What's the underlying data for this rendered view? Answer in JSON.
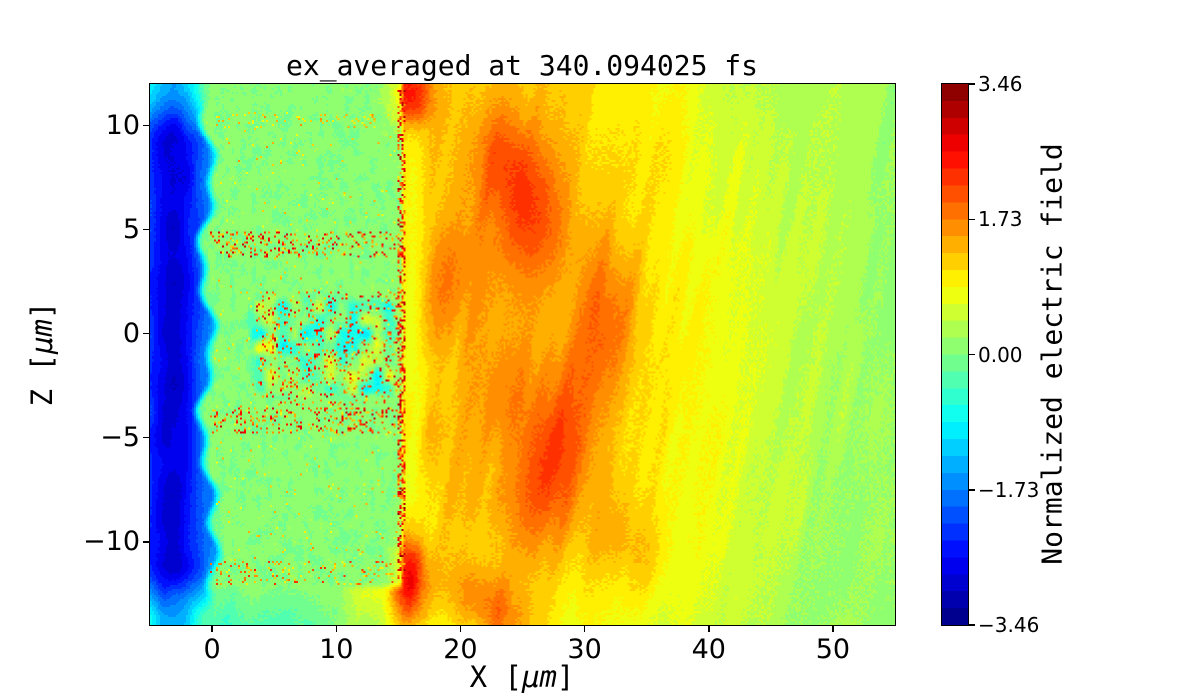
{
  "chart_data": {
    "type": "heatmap",
    "title": "ex_averaged at 340.094025 fs",
    "xlabel_parts": {
      "pre": "X [",
      "unit": "μm",
      "post": "]"
    },
    "ylabel_parts": {
      "pre": "Z [",
      "unit": "μm",
      "post": "]"
    },
    "colorbar_label": "Normalized electric field",
    "x_range": [
      -5,
      55
    ],
    "z_range": [
      -14,
      12
    ],
    "value_range": [
      -3.46,
      3.46
    ],
    "x_ticks": [
      0,
      10,
      20,
      30,
      40,
      50
    ],
    "x_tick_labels": [
      "0",
      "10",
      "20",
      "30",
      "40",
      "50"
    ],
    "z_ticks": [
      10,
      5,
      0,
      -5,
      -10
    ],
    "z_tick_labels": [
      "10",
      "5",
      "0",
      "−5",
      "−10"
    ],
    "colorbar_ticks": [
      3.46,
      1.73,
      0.0,
      -1.73,
      -3.46
    ],
    "colorbar_tick_labels": [
      "3.46",
      "1.73",
      "0.00",
      "−1.73",
      "−3.46"
    ],
    "colormap": "jet",
    "colormap_levels": 32,
    "grid": {
      "x": [
        -5,
        0,
        5,
        10,
        15,
        20,
        25,
        30,
        35,
        40,
        45,
        50,
        55
      ],
      "z": [
        12,
        10,
        8,
        6,
        4,
        2,
        0,
        -2,
        -4,
        -6,
        -8,
        -10,
        -12,
        -14
      ],
      "values": [
        [
          -1.1,
          0.15,
          0.15,
          0.2,
          1.5,
          1.25,
          1.35,
          1.15,
          0.9,
          0.65,
          0.45,
          0.3,
          0.2
        ],
        [
          -2.3,
          0.05,
          0.05,
          0.1,
          1.2,
          1.3,
          1.4,
          1.2,
          0.95,
          0.7,
          0.5,
          0.3,
          0.2
        ],
        [
          -2.6,
          0.05,
          0.05,
          0.05,
          1.15,
          1.35,
          1.4,
          1.25,
          1.0,
          0.75,
          0.5,
          0.3,
          0.2
        ],
        [
          -2.7,
          0.05,
          0.05,
          0.05,
          1.15,
          1.4,
          1.4,
          1.25,
          1.0,
          0.75,
          0.5,
          0.35,
          0.2
        ],
        [
          -2.75,
          0.1,
          0.1,
          0.1,
          1.2,
          1.45,
          1.45,
          1.3,
          1.05,
          0.8,
          0.55,
          0.35,
          0.2
        ],
        [
          -2.8,
          0.05,
          0.0,
          -0.1,
          1.2,
          1.4,
          1.4,
          1.3,
          1.1,
          0.8,
          0.55,
          0.35,
          0.2
        ],
        [
          -2.8,
          0.05,
          -0.2,
          -0.4,
          1.15,
          1.3,
          1.35,
          1.3,
          1.1,
          0.8,
          0.55,
          0.35,
          0.2
        ],
        [
          -2.8,
          0.05,
          -0.15,
          -0.25,
          1.05,
          1.25,
          1.4,
          1.35,
          1.1,
          0.8,
          0.55,
          0.35,
          0.2
        ],
        [
          -2.75,
          0.1,
          0.1,
          0.1,
          1.1,
          1.3,
          1.45,
          1.35,
          1.05,
          0.8,
          0.5,
          0.35,
          0.2
        ],
        [
          -2.7,
          0.05,
          0.05,
          0.05,
          1.1,
          1.3,
          1.45,
          1.35,
          1.0,
          0.75,
          0.5,
          0.3,
          0.2
        ],
        [
          -2.65,
          0.05,
          0.05,
          0.05,
          1.1,
          1.3,
          1.45,
          1.3,
          1.0,
          0.7,
          0.5,
          0.3,
          0.2
        ],
        [
          -2.4,
          0.05,
          0.05,
          0.05,
          1.3,
          1.15,
          1.25,
          1.2,
          0.95,
          0.7,
          0.45,
          0.3,
          0.2
        ],
        [
          -1.6,
          -0.1,
          0.05,
          0.15,
          1.3,
          1.15,
          1.05,
          1.0,
          0.8,
          0.6,
          0.4,
          0.25,
          0.15
        ],
        [
          -1.0,
          -0.5,
          -0.35,
          0.0,
          0.7,
          0.95,
          0.9,
          0.85,
          0.7,
          0.5,
          0.35,
          0.25,
          0.15
        ]
      ]
    },
    "features": {
      "vacuum_blue": {
        "center_x": -3.2,
        "depth_amp": 1.55,
        "base": -1.35,
        "edge_lighten": 1.5
      },
      "target_slab": {
        "x_max": 15.15,
        "base_value": 0.05,
        "z_bottom": -12.45,
        "edge_x_base": -0.4,
        "edge_wave_amp": 0.5,
        "edge_bulge_z": -11.3
      },
      "front_line": {
        "x": [
          14.95,
          15.6
        ],
        "z": [
          -11.8,
          11.7
        ],
        "density": 0.42,
        "value": [
          1.2,
          3.3
        ]
      },
      "noise_bands": [
        {
          "x": [
            0.0,
            15.3
          ],
          "z": [
            9.9,
            10.7
          ],
          "density": 0.08,
          "value": [
            0.7,
            1.6
          ]
        },
        {
          "x": [
            -0.2,
            15.5
          ],
          "z": [
            3.7,
            4.9
          ],
          "density": 0.18,
          "value": [
            1.1,
            3.0
          ]
        },
        {
          "x": [
            -0.2,
            15.5
          ],
          "z": [
            -4.8,
            -3.5
          ],
          "density": 0.18,
          "value": [
            1.1,
            3.0
          ]
        },
        {
          "x": [
            -0.2,
            14.6
          ],
          "z": [
            -12.1,
            -10.9
          ],
          "density": 0.12,
          "value": [
            0.8,
            2.4
          ]
        },
        {
          "x": [
            3.5,
            15.3
          ],
          "z": [
            -3.4,
            2.0
          ],
          "density": 0.1,
          "value": [
            1.3,
            3.0
          ]
        },
        {
          "x": [
            0.2,
            15.3
          ],
          "z": [
            -10.9,
            9.9
          ],
          "density": 0.015,
          "value": [
            0.6,
            1.6
          ]
        }
      ],
      "core_turbulence": {
        "x": [
          2.5,
          15.3
        ],
        "z": [
          -3.4,
          2.1
        ],
        "amplitude": 1.8,
        "bias": -0.58
      },
      "hot_spots": [
        {
          "x": 25.2,
          "z": 6.3,
          "sx": 2.6,
          "sz": 2.0,
          "rot": -40,
          "amp": 0.75
        },
        {
          "x": 23.5,
          "z": 8.8,
          "sx": 1.6,
          "sz": 1.4,
          "rot": -40,
          "amp": 0.35
        },
        {
          "x": 31.8,
          "z": 0.6,
          "sx": 1.6,
          "sz": 2.6,
          "rot": -15,
          "amp": 0.7
        },
        {
          "x": 27.6,
          "z": -6.1,
          "sx": 1.7,
          "sz": 3.4,
          "rot": -27,
          "amp": 0.85
        },
        {
          "x": 15.9,
          "z": 11.4,
          "sx": 1.2,
          "sz": 1.1,
          "rot": 0,
          "amp": 1.0
        },
        {
          "x": 16.0,
          "z": -12.1,
          "sx": 0.9,
          "sz": 1.7,
          "rot": 0,
          "amp": 1.3
        },
        {
          "x": 22.6,
          "z": -13.3,
          "sx": 2.2,
          "sz": 1.2,
          "rot": -20,
          "amp": 0.8
        },
        {
          "x": 34.0,
          "z": -10.5,
          "sx": 2.4,
          "sz": 1.5,
          "rot": -30,
          "amp": 0.3
        },
        {
          "x": 18.6,
          "z": 2.4,
          "sx": 2.0,
          "sz": 2.0,
          "rot": -30,
          "amp": 0.3
        },
        {
          "x": 23.5,
          "z": -2.9,
          "sx": 2.0,
          "sz": 1.8,
          "rot": -30,
          "amp": 0.25
        },
        {
          "x": 17.3,
          "z": -5.2,
          "sx": 1.2,
          "sz": 1.5,
          "rot": -20,
          "amp": 0.3
        }
      ],
      "wake_streaks": {
        "angle_deg": 72,
        "scale_across": 0.9,
        "scale_along": 6.5,
        "amplitude": 0.34
      },
      "post_line_dip": {
        "x_center": 16.2,
        "sigma": 0.8,
        "amp": 0.45,
        "z": [
          -11,
          11
        ]
      }
    }
  }
}
